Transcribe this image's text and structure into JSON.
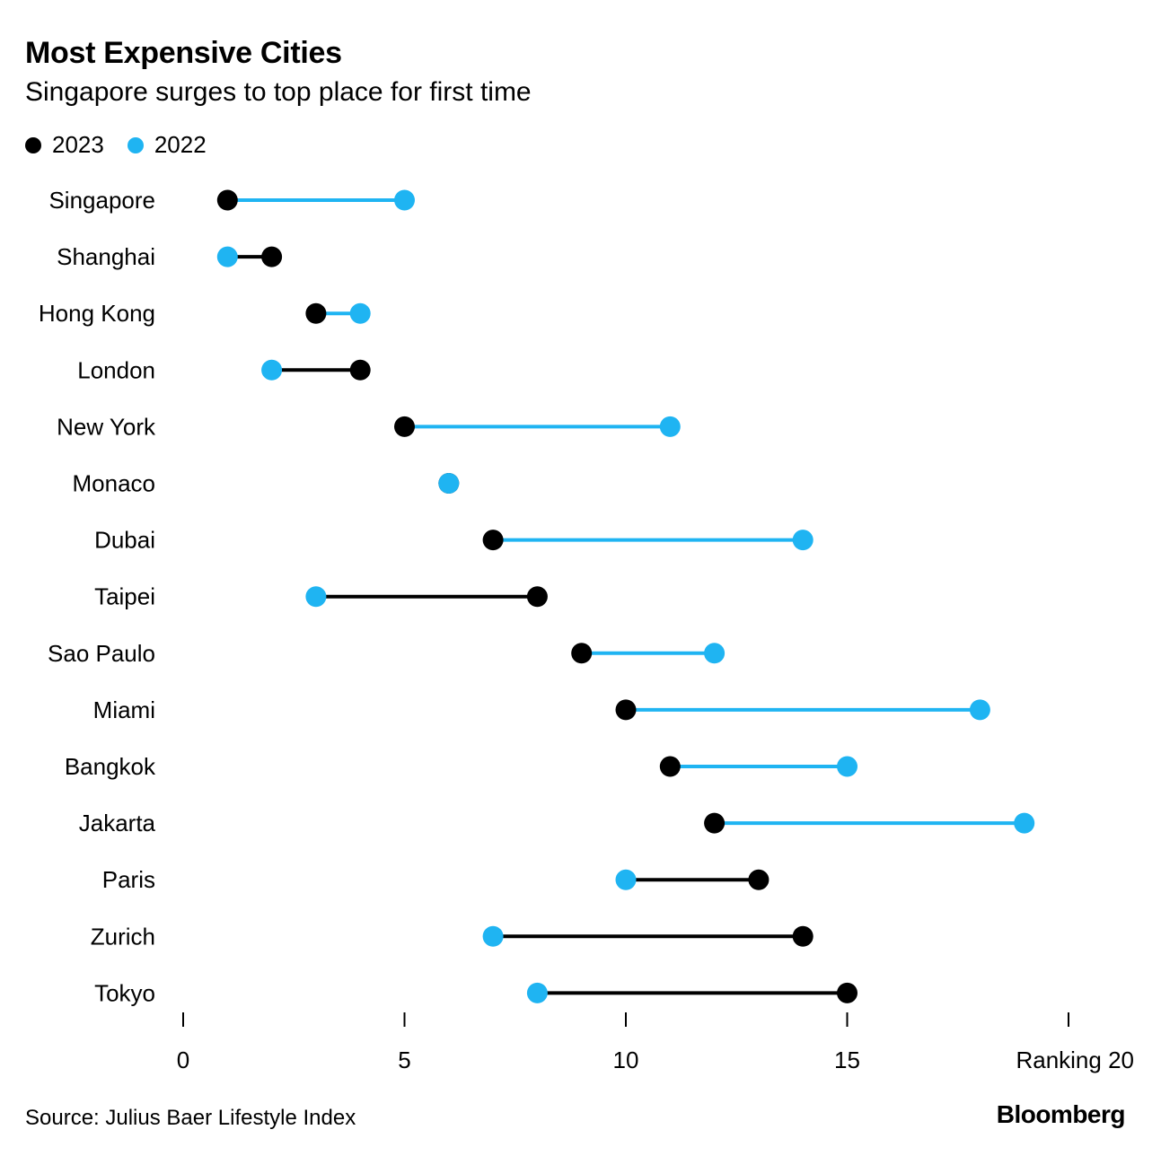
{
  "title": "Most Expensive Cities",
  "subtitle": "Singapore surges to top place for first time",
  "legend": [
    {
      "label": "2023",
      "color": "#000000"
    },
    {
      "label": "2022",
      "color": "#1fb4f2"
    }
  ],
  "footer": {
    "source": "Source: Julius Baer Lifestyle Index",
    "brand": "Bloomberg"
  },
  "chart_data": {
    "type": "dumbbell",
    "title": "Most Expensive Cities",
    "subtitle": "Singapore surges to top place for first time",
    "xlabel": "Ranking",
    "xlim": [
      0,
      20
    ],
    "xticks": [
      0,
      5,
      10,
      15,
      20
    ],
    "xtick_labels": [
      "0",
      "5",
      "10",
      "15",
      "Ranking 20"
    ],
    "categories": [
      "Singapore",
      "Shanghai",
      "Hong Kong",
      "London",
      "New York",
      "Monaco",
      "Dubai",
      "Taipei",
      "Sao Paulo",
      "Miami",
      "Bangkok",
      "Jakarta",
      "Paris",
      "Zurich",
      "Tokyo"
    ],
    "series": [
      {
        "name": "2023",
        "color": "#000000",
        "values": [
          1,
          2,
          3,
          4,
          5,
          6,
          7,
          8,
          9,
          10,
          11,
          12,
          13,
          14,
          15
        ]
      },
      {
        "name": "2022",
        "color": "#1fb4f2",
        "values": [
          5,
          1,
          4,
          2,
          11,
          6,
          14,
          3,
          12,
          18,
          15,
          19,
          10,
          7,
          8
        ]
      }
    ]
  }
}
